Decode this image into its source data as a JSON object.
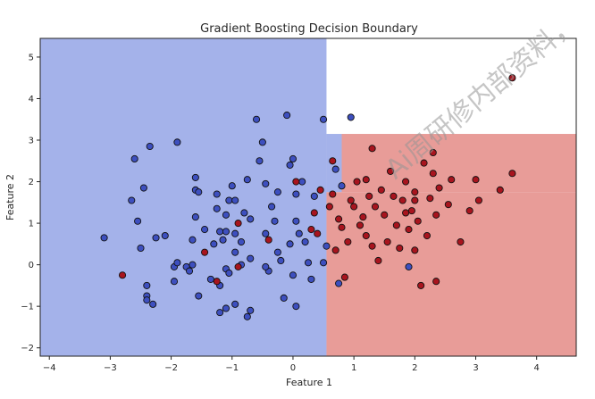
{
  "chart_data": {
    "type": "scatter",
    "title": "Gradient Boosting Decision Boundary",
    "xlabel": "Feature 1",
    "ylabel": "Feature 2",
    "xlim": [
      -4.15,
      4.65
    ],
    "ylim": [
      -2.2,
      5.45
    ],
    "xticks": [
      -4,
      -3,
      -2,
      -1,
      0,
      1,
      2,
      3,
      4
    ],
    "yticks": [
      -2,
      -1,
      0,
      1,
      2,
      3,
      4,
      5
    ],
    "grid": false,
    "regions": [
      {
        "name": "class-0",
        "color": "#a4b2ea"
      },
      {
        "name": "class-1",
        "color": "#e89c98"
      }
    ],
    "boundary": [
      {
        "x0": -4.15,
        "x1": 0.55,
        "y0": -2.2,
        "y1": 5.45,
        "cls": 0
      },
      {
        "x0": 0.55,
        "x1": 4.65,
        "y0": -2.2,
        "y1": 1.75,
        "cls": 1
      },
      {
        "x0": 0.8,
        "x1": 4.65,
        "y0": 1.75,
        "y1": 3.15,
        "cls": 1
      },
      {
        "x0": 0.55,
        "x1": 0.8,
        "y0": 1.75,
        "y1": 3.15,
        "cls": 0
      }
    ],
    "series": [
      {
        "color": "#3d4fbf",
        "points": [
          [
            -3.1,
            0.65
          ],
          [
            -2.35,
            2.85
          ],
          [
            -1.9,
            2.95
          ],
          [
            -2.6,
            2.55
          ],
          [
            -2.45,
            1.85
          ],
          [
            -2.65,
            1.55
          ],
          [
            -2.55,
            1.05
          ],
          [
            -2.5,
            0.4
          ],
          [
            -2.25,
            0.65
          ],
          [
            -2.1,
            0.7
          ],
          [
            -2.4,
            -0.5
          ],
          [
            -2.4,
            -0.75
          ],
          [
            -2.4,
            -0.85
          ],
          [
            -2.3,
            -0.95
          ],
          [
            -1.95,
            -0.05
          ],
          [
            -1.95,
            -0.4
          ],
          [
            -1.75,
            -0.05
          ],
          [
            -1.7,
            -0.15
          ],
          [
            -1.65,
            0.0
          ],
          [
            -1.65,
            0.6
          ],
          [
            -1.6,
            1.15
          ],
          [
            -1.6,
            1.8
          ],
          [
            -1.6,
            2.1
          ],
          [
            -1.55,
            1.75
          ],
          [
            -1.55,
            -0.75
          ],
          [
            -1.45,
            0.85
          ],
          [
            -1.35,
            -0.35
          ],
          [
            -1.3,
            0.5
          ],
          [
            -1.25,
            1.35
          ],
          [
            -1.25,
            1.7
          ],
          [
            -1.2,
            0.8
          ],
          [
            -1.15,
            0.6
          ],
          [
            -1.1,
            0.8
          ],
          [
            -1.1,
            1.2
          ],
          [
            -1.05,
            1.55
          ],
          [
            -1.0,
            1.9
          ],
          [
            -0.95,
            1.55
          ],
          [
            -0.95,
            0.75
          ],
          [
            -0.95,
            0.3
          ],
          [
            -1.1,
            -0.1
          ],
          [
            -1.05,
            -0.2
          ],
          [
            -1.2,
            -0.5
          ],
          [
            -1.2,
            -1.15
          ],
          [
            -1.1,
            -1.05
          ],
          [
            -0.95,
            -0.95
          ],
          [
            -0.85,
            0.0
          ],
          [
            -0.85,
            0.55
          ],
          [
            -0.8,
            1.25
          ],
          [
            -0.75,
            2.05
          ],
          [
            -0.7,
            1.1
          ],
          [
            -0.7,
            0.15
          ],
          [
            -0.7,
            -1.1
          ],
          [
            -0.75,
            -1.25
          ],
          [
            -0.6,
            3.5
          ],
          [
            -0.55,
            2.5
          ],
          [
            -0.5,
            2.95
          ],
          [
            -0.45,
            1.95
          ],
          [
            -0.45,
            0.75
          ],
          [
            -0.35,
            1.4
          ],
          [
            -0.4,
            -0.15
          ],
          [
            -0.3,
            1.05
          ],
          [
            -0.25,
            1.75
          ],
          [
            -0.25,
            0.3
          ],
          [
            -0.2,
            0.1
          ],
          [
            -0.15,
            -0.8
          ],
          [
            -0.1,
            3.6
          ],
          [
            -0.05,
            2.4
          ],
          [
            -0.05,
            0.5
          ],
          [
            0.0,
            -0.25
          ],
          [
            0.0,
            2.55
          ],
          [
            0.05,
            1.7
          ],
          [
            0.05,
            1.05
          ],
          [
            0.05,
            -1.0
          ],
          [
            0.1,
            0.75
          ],
          [
            0.2,
            0.55
          ],
          [
            0.25,
            0.05
          ],
          [
            0.3,
            -0.35
          ],
          [
            0.35,
            1.65
          ],
          [
            0.5,
            3.5
          ],
          [
            0.5,
            0.05
          ],
          [
            0.55,
            0.45
          ],
          [
            0.7,
            2.3
          ],
          [
            0.75,
            -0.45
          ],
          [
            0.8,
            1.9
          ],
          [
            0.95,
            3.55
          ],
          [
            1.9,
            -0.05
          ],
          [
            -0.45,
            -0.05
          ],
          [
            -1.9,
            0.05
          ],
          [
            0.15,
            2.0
          ]
        ]
      },
      {
        "color": "#a8141e",
        "points": [
          [
            -2.8,
            -0.25
          ],
          [
            -1.45,
            0.3
          ],
          [
            -1.25,
            -0.4
          ],
          [
            -0.9,
            1.0
          ],
          [
            -0.9,
            -0.05
          ],
          [
            -0.4,
            0.6
          ],
          [
            0.05,
            2.0
          ],
          [
            0.3,
            0.85
          ],
          [
            0.35,
            1.25
          ],
          [
            0.4,
            0.75
          ],
          [
            0.6,
            1.4
          ],
          [
            0.65,
            2.5
          ],
          [
            0.7,
            0.35
          ],
          [
            0.75,
            1.1
          ],
          [
            0.8,
            0.9
          ],
          [
            0.85,
            -0.3
          ],
          [
            0.9,
            0.55
          ],
          [
            1.0,
            1.4
          ],
          [
            1.05,
            2.0
          ],
          [
            1.1,
            0.95
          ],
          [
            1.15,
            1.15
          ],
          [
            1.2,
            0.7
          ],
          [
            1.25,
            1.65
          ],
          [
            1.3,
            0.45
          ],
          [
            1.3,
            2.8
          ],
          [
            1.35,
            1.4
          ],
          [
            1.4,
            0.1
          ],
          [
            1.45,
            1.8
          ],
          [
            1.5,
            1.2
          ],
          [
            1.55,
            0.55
          ],
          [
            1.6,
            2.25
          ],
          [
            1.65,
            1.65
          ],
          [
            1.7,
            0.95
          ],
          [
            1.75,
            0.4
          ],
          [
            1.8,
            1.55
          ],
          [
            1.85,
            2.0
          ],
          [
            1.9,
            0.85
          ],
          [
            1.95,
            1.3
          ],
          [
            2.0,
            0.35
          ],
          [
            2.0,
            1.75
          ],
          [
            2.05,
            1.05
          ],
          [
            2.1,
            -0.5
          ],
          [
            2.15,
            2.45
          ],
          [
            2.2,
            0.7
          ],
          [
            2.25,
            1.6
          ],
          [
            2.3,
            2.2
          ],
          [
            2.35,
            1.2
          ],
          [
            2.35,
            -0.4
          ],
          [
            2.4,
            1.85
          ],
          [
            2.55,
            1.45
          ],
          [
            2.6,
            2.05
          ],
          [
            2.75,
            0.55
          ],
          [
            3.0,
            2.05
          ],
          [
            3.05,
            1.55
          ],
          [
            3.4,
            1.8
          ],
          [
            3.6,
            2.2
          ],
          [
            3.6,
            4.5
          ],
          [
            2.9,
            1.3
          ],
          [
            2.0,
            1.55
          ],
          [
            1.85,
            1.25
          ],
          [
            0.45,
            1.8
          ],
          [
            0.65,
            1.7
          ],
          [
            2.3,
            2.7
          ],
          [
            0.95,
            1.55
          ],
          [
            1.2,
            2.05
          ]
        ]
      }
    ]
  }
}
